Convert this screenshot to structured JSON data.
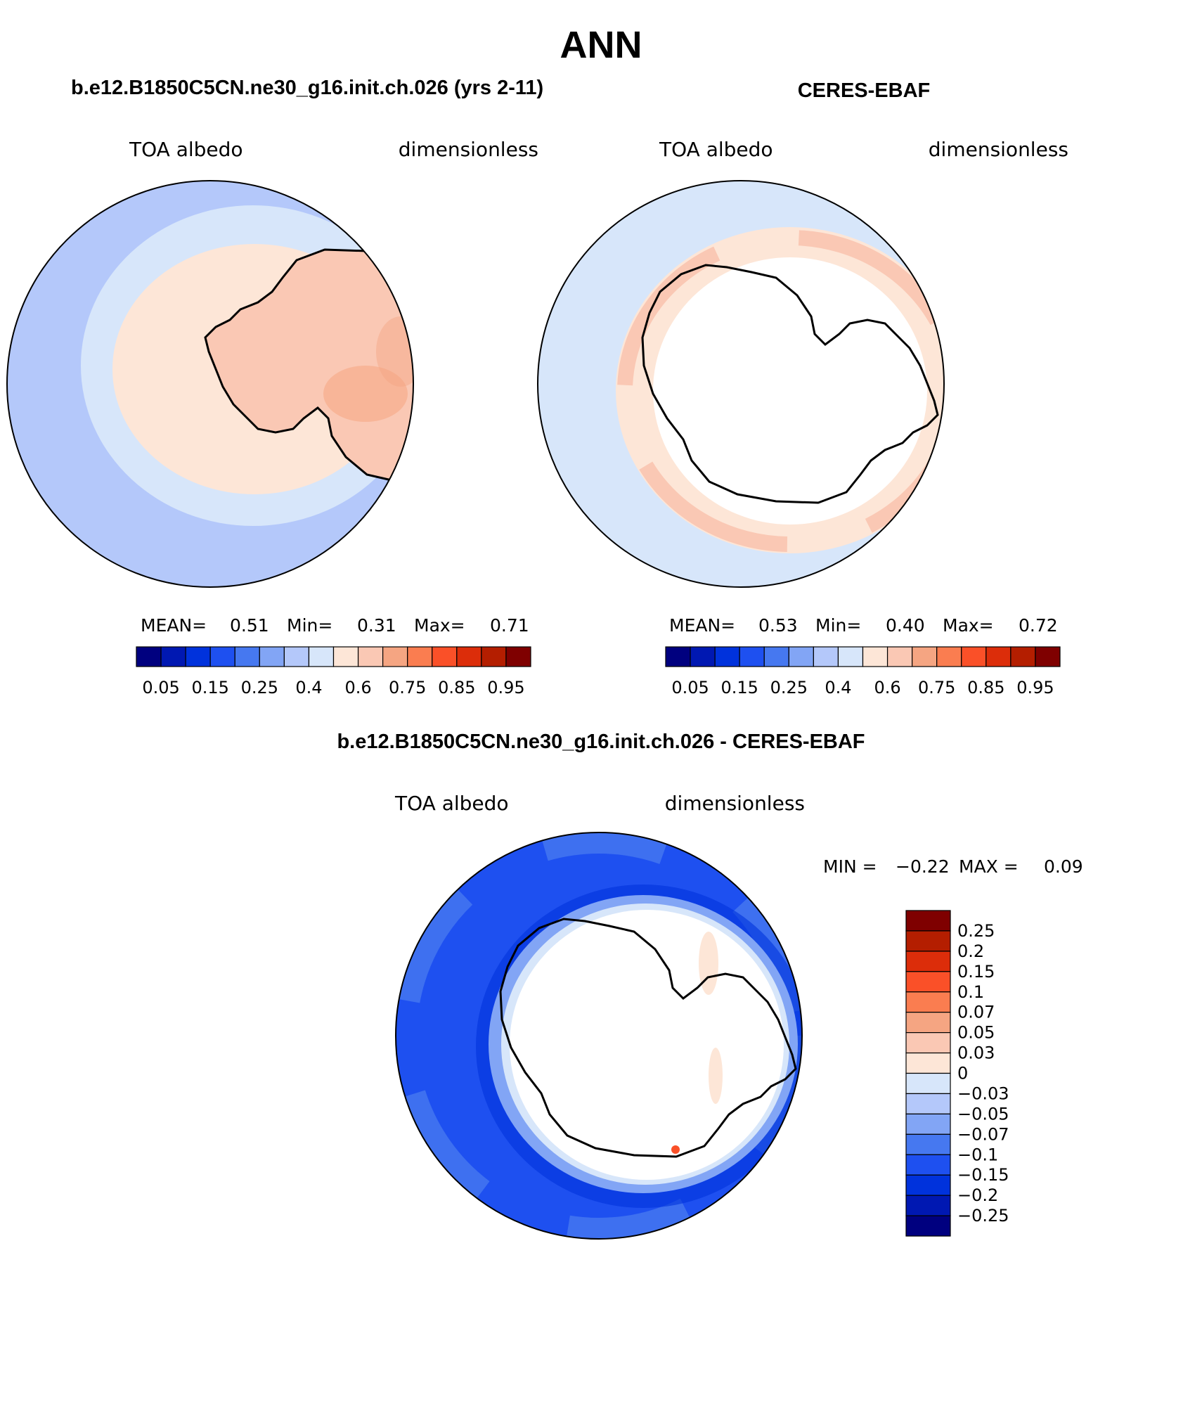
{
  "figure_title": "ANN",
  "colors": {
    "scale": [
      "#00007f",
      "#0018b2",
      "#0032dc",
      "#1e50f0",
      "#4678f0",
      "#82a5f5",
      "#b4c8fa",
      "#d7e6fa",
      "#fde6d7",
      "#fac8b4",
      "#f5a582",
      "#fa7d50",
      "#fa5028",
      "#dc2d0a",
      "#b41e00",
      "#7f0000"
    ],
    "coast": "#000000"
  },
  "panels": [
    {
      "heading": "b.e12.B1850C5CN.ne30_g16.init.ch.026 (yrs 2-11)",
      "left_label": "TOA albedo",
      "right_label": "dimensionless",
      "stats": {
        "mean_label": "MEAN=",
        "mean": "0.51",
        "min_label": "Min=",
        "min": "0.31",
        "max_label": "Max=",
        "max": "0.71"
      },
      "colorbar_ticks": [
        "0.05",
        "0.15",
        "0.25",
        "0.4",
        "0.6",
        "0.75",
        "0.85",
        "0.95"
      ]
    },
    {
      "heading": "CERES-EBAF",
      "left_label": "TOA albedo",
      "right_label": "dimensionless",
      "stats": {
        "mean_label": "MEAN=",
        "mean": "0.53",
        "min_label": "Min=",
        "min": "0.40",
        "max_label": "Max=",
        "max": "0.72"
      },
      "colorbar_ticks": [
        "0.05",
        "0.15",
        "0.25",
        "0.4",
        "0.6",
        "0.75",
        "0.85",
        "0.95"
      ]
    }
  ],
  "diff": {
    "heading": "b.e12.B1850C5CN.ne30_g16.init.ch.026 - CERES-EBAF",
    "left_label": "TOA albedo",
    "right_label": "dimensionless",
    "stats": {
      "min_label": "MIN =",
      "min": "−0.22",
      "max_label": "MAX =",
      "max": "0.09"
    },
    "colorbar_ticks": [
      "0.25",
      "0.2",
      "0.15",
      "0.1",
      "0.07",
      "0.05",
      "0.03",
      "0",
      "−0.03",
      "−0.05",
      "−0.07",
      "−0.1",
      "−0.15",
      "−0.2",
      "−0.25"
    ]
  }
}
